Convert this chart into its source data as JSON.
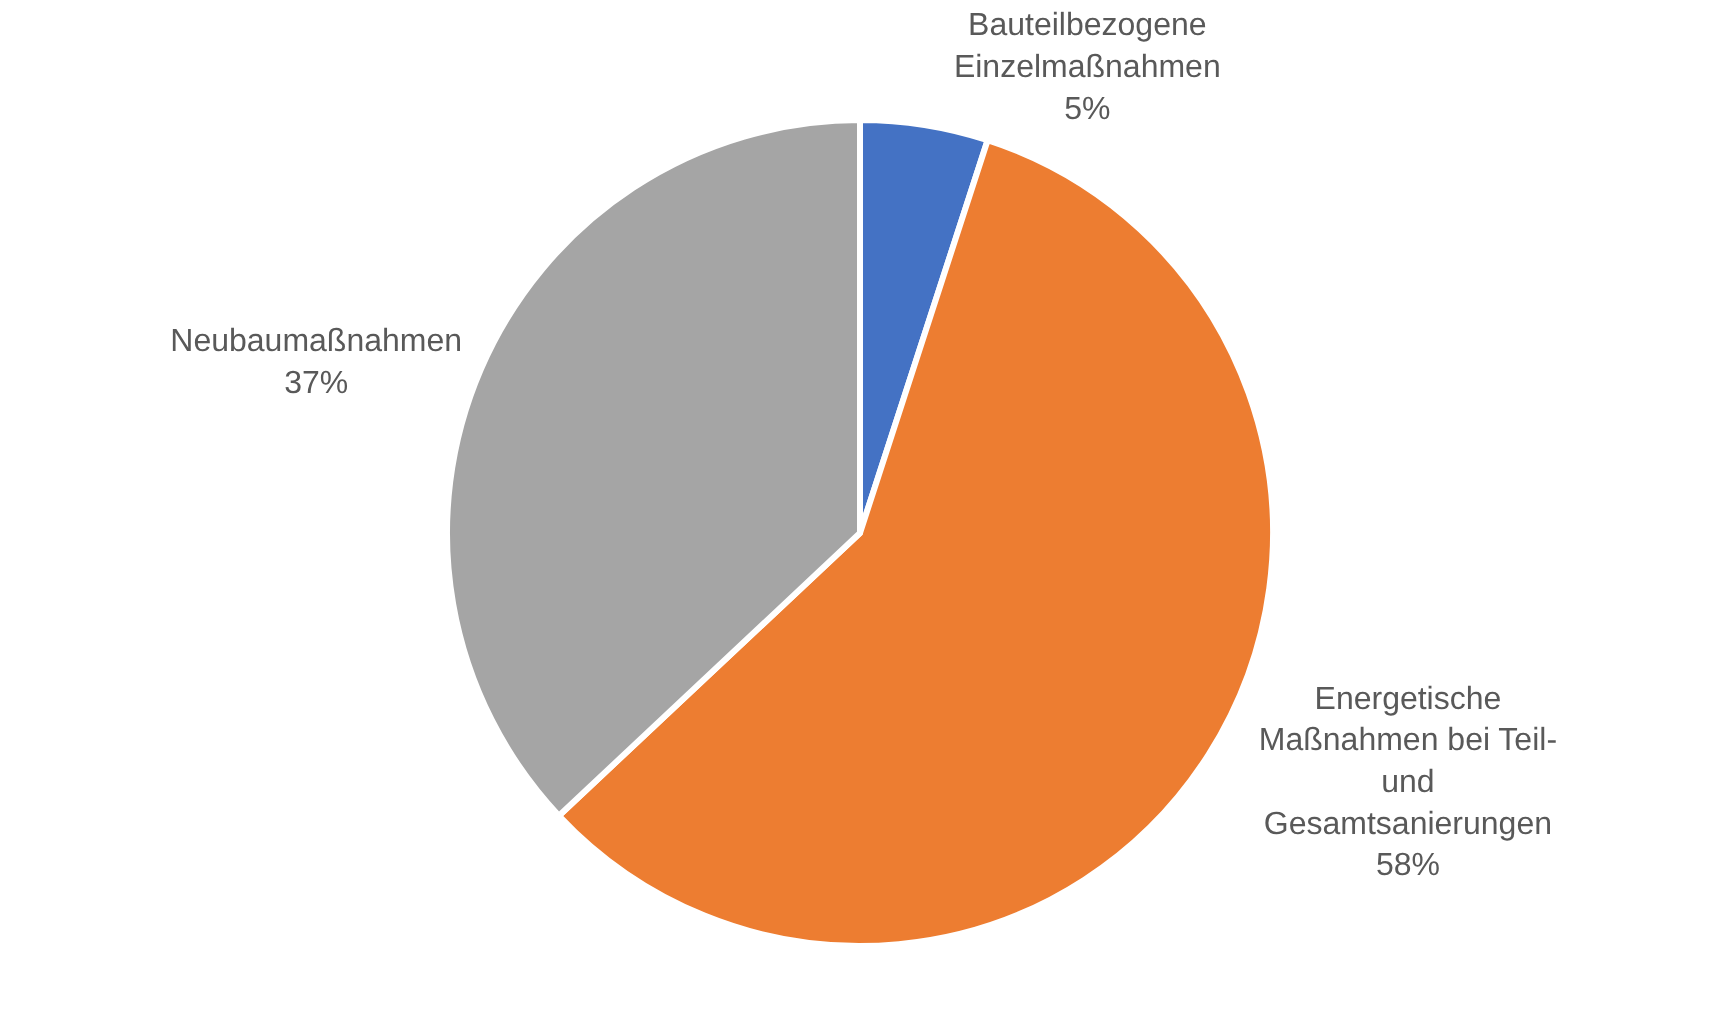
{
  "chart_data": {
    "type": "pie",
    "categories": [
      "Bauteilbezogene Einzelmaßnahmen",
      "Energetische Maßnahmen bei Teil- und Gesamtsanierungen",
      "Neubaumaßnahmen"
    ],
    "values": [
      5,
      58,
      37
    ],
    "value_labels": [
      "5%",
      "58%",
      "37%"
    ],
    "colors": [
      "#4472c4",
      "#ed7d31",
      "#a5a5a5"
    ],
    "legend": false
  }
}
